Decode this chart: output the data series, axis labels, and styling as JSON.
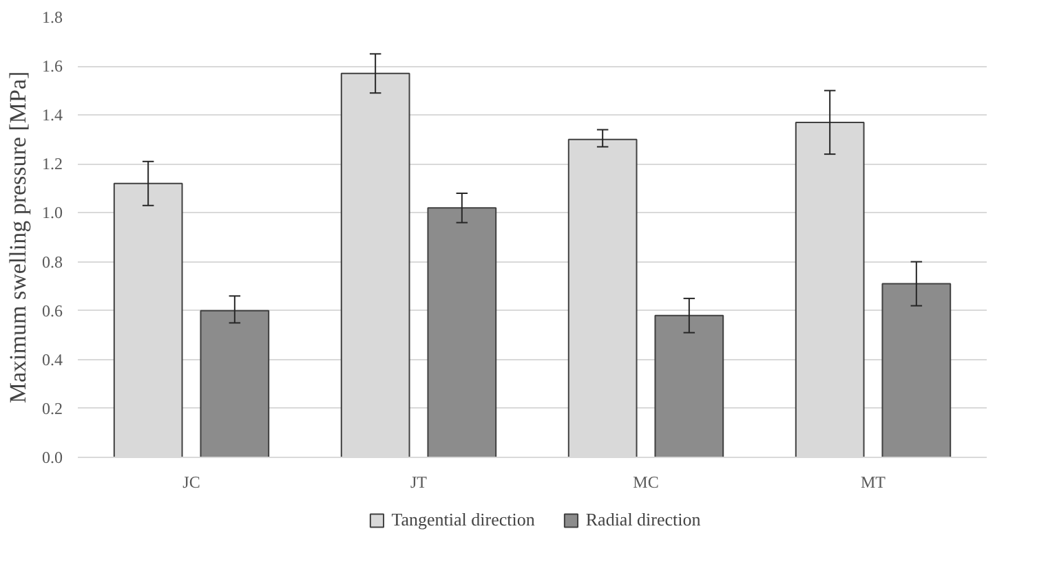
{
  "chart_data": {
    "type": "bar",
    "ylabel": "Maximum swelling pressure [MPa]",
    "categories": [
      "JC",
      "JT",
      "MC",
      "MT"
    ],
    "series": [
      {
        "name": "Tangential direction",
        "color": "#d9d9d9",
        "values": [
          1.12,
          1.57,
          1.3,
          1.37
        ],
        "errors": [
          [
            1.03,
            1.21
          ],
          [
            1.49,
            1.65
          ],
          [
            1.27,
            1.34
          ],
          [
            1.24,
            1.5
          ]
        ]
      },
      {
        "name": "Radial direction",
        "color": "#8c8c8c",
        "values": [
          0.6,
          1.02,
          0.58,
          0.71
        ],
        "errors": [
          [
            0.55,
            0.66
          ],
          [
            0.96,
            1.08
          ],
          [
            0.51,
            0.65
          ],
          [
            0.62,
            0.8
          ]
        ]
      }
    ],
    "ylim": [
      0,
      1.8
    ],
    "yticks": [
      {
        "value": 0,
        "label": "0.0"
      },
      {
        "value": 0.2,
        "label": "0.2"
      },
      {
        "value": 0.4,
        "label": "0.4"
      },
      {
        "value": 0.6,
        "label": "0.6"
      },
      {
        "value": 0.8,
        "label": "0.8"
      },
      {
        "value": 1.0,
        "label": "1.0"
      },
      {
        "value": 1.2,
        "label": "1.2"
      },
      {
        "value": 1.4,
        "label": "1.4"
      },
      {
        "value": 1.6,
        "label": "1.6"
      },
      {
        "value": 1.8,
        "label": "1.8"
      }
    ],
    "grid": "y",
    "legend": "bottom"
  }
}
